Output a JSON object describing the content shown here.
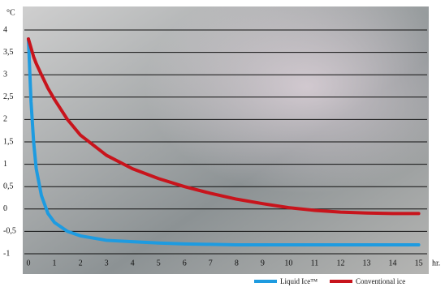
{
  "chart_data": {
    "type": "line",
    "y_label": "°C",
    "x_label": "hr.",
    "x": [
      0,
      0.1,
      0.2,
      0.3,
      0.5,
      0.75,
      1,
      1.5,
      2,
      3,
      4,
      5,
      6,
      7,
      8,
      9,
      10,
      11,
      12,
      13,
      14,
      15
    ],
    "series": [
      {
        "name": "Liquid Ice™",
        "color": "#1e9be0",
        "values": [
          3.8,
          2.4,
          1.5,
          0.9,
          0.3,
          -0.1,
          -0.3,
          -0.5,
          -0.6,
          -0.7,
          -0.73,
          -0.76,
          -0.78,
          -0.79,
          -0.8,
          -0.8,
          -0.8,
          -0.8,
          -0.8,
          -0.8,
          -0.8,
          -0.8
        ]
      },
      {
        "name": "Conventional ice",
        "color": "#c8141c",
        "values": [
          3.8,
          3.6,
          3.4,
          3.25,
          3.0,
          2.7,
          2.45,
          2.0,
          1.65,
          1.2,
          0.9,
          0.68,
          0.5,
          0.35,
          0.22,
          0.12,
          0.03,
          -0.03,
          -0.07,
          -0.09,
          -0.1,
          -0.1
        ]
      }
    ],
    "xlim": [
      0,
      15.2
    ],
    "ylim": [
      -1,
      4
    ],
    "xticks": [
      0,
      1,
      2,
      3,
      4,
      5,
      6,
      7,
      8,
      9,
      10,
      11,
      12,
      13,
      14,
      15
    ],
    "yticks": [
      4,
      {
        "value": 3.5,
        "label": "3,5"
      },
      3,
      {
        "value": 2.5,
        "label": "2,5"
      },
      2,
      {
        "value": 1.5,
        "label": "1,5"
      },
      1,
      {
        "value": 0.5,
        "label": "0,5"
      },
      0,
      {
        "value": -0.5,
        "label": "-0,5"
      },
      -1
    ],
    "grid": true
  }
}
